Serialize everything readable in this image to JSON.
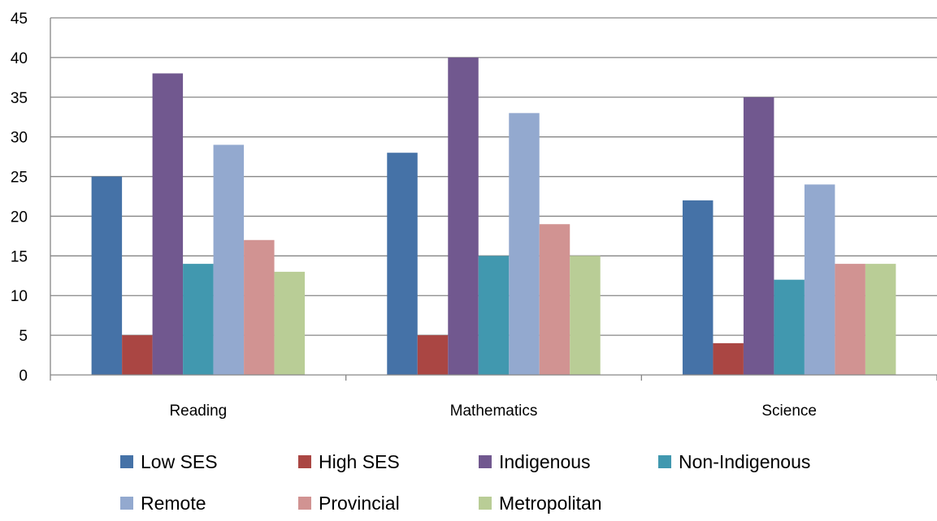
{
  "chart_data": {
    "type": "bar",
    "categories": [
      "Reading",
      "Mathematics",
      "Science"
    ],
    "ylim": [
      0,
      45
    ],
    "yticks": [
      0,
      5,
      10,
      15,
      20,
      25,
      30,
      35,
      40,
      45
    ],
    "grid": true,
    "legend_position": "bottom",
    "series": [
      {
        "name": "Low SES",
        "color": "#4572A7",
        "values": [
          25,
          28,
          22
        ]
      },
      {
        "name": "High SES",
        "color": "#AA4643",
        "values": [
          5,
          5,
          4
        ]
      },
      {
        "name": "Indigenous",
        "color": "#71588F",
        "values": [
          38,
          40,
          35
        ]
      },
      {
        "name": "Non-Indigenous",
        "color": "#4198AF",
        "values": [
          14,
          15,
          12
        ]
      },
      {
        "name": "Remote",
        "color": "#93A9CF",
        "values": [
          29,
          33,
          24
        ]
      },
      {
        "name": "Provincial",
        "color": "#D19392",
        "values": [
          17,
          19,
          14
        ]
      },
      {
        "name": "Metropolitan",
        "color": "#B9CD96",
        "values": [
          13,
          15,
          14
        ]
      }
    ]
  }
}
